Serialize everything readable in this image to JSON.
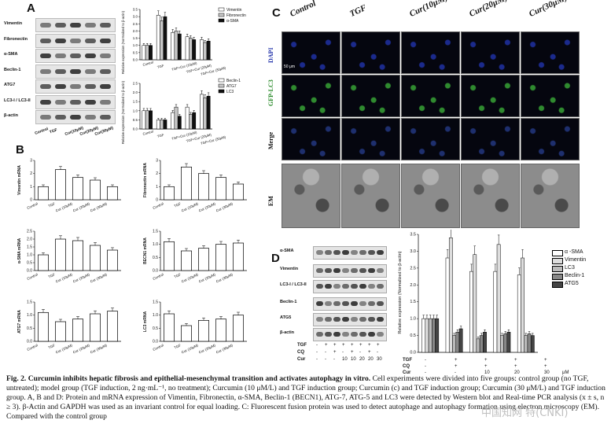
{
  "panels": {
    "A": "A",
    "B": "B",
    "C": "C",
    "D": "D"
  },
  "panelA": {
    "blot_labels": [
      "Vimentin",
      "Fibronectin",
      "α-SMA",
      "Beclin-1",
      "ATG7",
      "LC3-I\nLC3-II",
      "β-actin"
    ],
    "lane_labels": [
      "Control",
      "TGF",
      "Cur(10μM)",
      "Cur(20μM)",
      "Cur(30μM)"
    ],
    "chart1": {
      "ylabel": "Relative expression (Normalized to β-actin)",
      "legend": [
        "Vimentin",
        "Fibronectin",
        "α-SMA"
      ],
      "categories": [
        "Control",
        "TGF",
        "TGF+Cur (10μM)",
        "TGF+Cur (20μM)",
        "TGF+Cur (30μM)"
      ],
      "yticks": [
        "0.0",
        "0.5",
        "1.0",
        "1.5",
        "2.0",
        "2.5",
        "3.0",
        "3.5"
      ]
    },
    "chart2": {
      "ylabel": "Relative expression (Normalized to β-actin)",
      "legend": [
        "Beclin-1",
        "ATG7",
        "LC3"
      ],
      "categories": [
        "Control",
        "TGF",
        "TGF+Cur (10μM)",
        "TGF+Cur (20μM)",
        "TGF+Cur (30μM)"
      ],
      "yticks": [
        "0.0",
        "0.5",
        "1.0",
        "1.5",
        "2.0",
        "2.5"
      ]
    }
  },
  "panelB": {
    "categories": [
      "Control",
      "TGF",
      "Cur (10μM)",
      "Cur (20μM)",
      "Cur (30μM)"
    ],
    "charts": [
      {
        "ylabel": "Vimentin mRNA",
        "yticks": [
          "0",
          "1",
          "2",
          "3"
        ]
      },
      {
        "ylabel": "Fibronectin mRNA",
        "yticks": [
          "0",
          "1",
          "2",
          "3"
        ]
      },
      {
        "ylabel": "α-SMA mRNA",
        "yticks": [
          "0.0",
          "0.5",
          "1.0",
          "1.5",
          "2.0",
          "2.5"
        ]
      },
      {
        "ylabel": "BECN1 mRNA",
        "yticks": [
          "0.0",
          "0.5",
          "1.0",
          "1.5"
        ]
      },
      {
        "ylabel": "ATG7 mRNA",
        "yticks": [
          "0.0",
          "0.5",
          "1.0",
          "1.5"
        ]
      },
      {
        "ylabel": "LC3 mRNA",
        "yticks": [
          "0.0",
          "0.5",
          "1.0",
          "1.5"
        ]
      }
    ]
  },
  "panelC": {
    "columns": [
      "Control",
      "TGF",
      "Cur(10μM)",
      "Cur(20μM)",
      "Cur(30μM)"
    ],
    "rows": [
      "DAPI",
      "GFP-LC3",
      "Merge",
      "EM"
    ],
    "scale": "50 μm",
    "colors": {
      "dapi": "#1b2a8c",
      "gfp": "#2f8a2f",
      "merge": "#1e2f6e",
      "em": "#9a9a9a"
    }
  },
  "panelD": {
    "blot_labels": [
      "α-SMA",
      "Vimentin",
      "LC3-I\nLC3-II",
      "Beclin-1",
      "ATG5",
      "β-actin"
    ],
    "treat_rows": [
      {
        "name": "TGF",
        "vals": [
          "-",
          "+",
          "+",
          "+",
          "+",
          "+",
          "+",
          "+"
        ]
      },
      {
        "name": "CQ",
        "vals": [
          "-",
          "-",
          "+",
          "-",
          "+",
          "-",
          "+",
          "-"
        ]
      },
      {
        "name": "Cur",
        "vals": [
          "-",
          "-",
          "-",
          "10",
          "10",
          "20",
          "20",
          "30"
        ]
      }
    ],
    "chart": {
      "ylabel": "Relative expression (Normalized to β-actin)",
      "legend": [
        "α -SMA",
        "Vimentin",
        "LC3",
        "Beclin-1",
        "ATG5"
      ],
      "yticks": [
        "0.0",
        "0.5",
        "1.0",
        "1.5",
        "2.0",
        "2.5",
        "3.0",
        "3.5"
      ],
      "xrows": [
        {
          "name": "TGF",
          "vals": [
            "-",
            "+",
            "+",
            "+",
            "+"
          ]
        },
        {
          "name": "CQ",
          "vals": [
            "-",
            "+",
            "+",
            "+",
            "+"
          ]
        },
        {
          "name": "Cur",
          "vals": [
            "-",
            "-",
            "10",
            "20",
            "30"
          ]
        }
      ],
      "unit": "μM"
    }
  },
  "caption": {
    "bold": "Fig. 2. Curcumin inhibits hepatic fibrosis and epithelial-mesenchymal transition and activates autophagy in vitro.",
    "text": " Cell experiments were divided into five groups: control group (no TGF, untreated); model group (TGF induction, 2 ng·mL⁻¹, no treatment); Curcumin (10 μM/L) and TGF induction group; Curcumin (c) and TGF induction group; Curcumin (30 μM/L) and TGF induction group. A, B and D: Protein and mRNA expression of Vimentin, Fibronectin, α-SMA, Beclin-1 (BECN1), ATG-7, ATG-5 and LC3 were detected by Western blot and Real-time PCR analysis (x ± s, n ≥ 3). β-Actin and GAPDH was used as an invariant control for equal loading. C: Fluorescent fusion protein was used to detect autophage and autophagy formation using electron microscopy (EM). Compared with the control group"
  },
  "watermark": "中国知网 特(CNKI)",
  "chart_data": [
    {
      "type": "bar",
      "categories": [
        "Control",
        "TGF",
        "TGF+Cur (10μM)",
        "TGF+Cur (20μM)",
        "TGF+Cur (30μM)"
      ],
      "series": [
        {
          "name": "Vimentin",
          "values": [
            1.0,
            3.1,
            1.9,
            1.6,
            1.4
          ]
        },
        {
          "name": "Fibronectin",
          "values": [
            1.0,
            2.7,
            2.0,
            1.5,
            1.2
          ]
        },
        {
          "name": "α-SMA",
          "values": [
            1.0,
            3.0,
            1.8,
            1.4,
            1.3
          ]
        }
      ],
      "ylim": [
        0,
        3.5
      ],
      "ylabel": "Relative expression (Normalized to β-actin)"
    },
    {
      "type": "bar",
      "categories": [
        "Control",
        "TGF",
        "TGF+Cur (10μM)",
        "TGF+Cur (20μM)",
        "TGF+Cur (30μM)"
      ],
      "series": [
        {
          "name": "Beclin-1",
          "values": [
            1.0,
            0.5,
            0.9,
            1.2,
            1.9
          ]
        },
        {
          "name": "ATG7",
          "values": [
            1.0,
            0.5,
            1.2,
            0.8,
            1.7
          ]
        },
        {
          "name": "LC3",
          "values": [
            1.0,
            0.5,
            0.7,
            0.9,
            1.8
          ]
        }
      ],
      "ylim": [
        0,
        2.5
      ],
      "ylabel": "Relative expression (Normalized to β-actin)"
    },
    {
      "type": "bar",
      "categories": [
        "Control",
        "TGF",
        "Cur (10μM)",
        "Cur (20μM)",
        "Cur (30μM)"
      ],
      "values": [
        1.0,
        2.3,
        1.7,
        1.5,
        1.0
      ],
      "ylim": [
        0,
        3
      ],
      "ylabel": "Vimentin mRNA"
    },
    {
      "type": "bar",
      "categories": [
        "Control",
        "TGF",
        "Cur (10μM)",
        "Cur (20μM)",
        "Cur (30μM)"
      ],
      "values": [
        1.0,
        2.5,
        2.0,
        1.7,
        1.2
      ],
      "ylim": [
        0,
        3
      ],
      "ylabel": "Fibronectin mRNA"
    },
    {
      "type": "bar",
      "categories": [
        "Control",
        "TGF",
        "Cur (10μM)",
        "Cur (20μM)",
        "Cur (30μM)"
      ],
      "values": [
        1.0,
        2.0,
        1.9,
        1.6,
        1.3
      ],
      "ylim": [
        0,
        2.5
      ],
      "ylabel": "α-SMA mRNA"
    },
    {
      "type": "bar",
      "categories": [
        "Control",
        "TGF",
        "Cur (10μM)",
        "Cur (20μM)",
        "Cur (30μM)"
      ],
      "values": [
        1.1,
        0.75,
        0.85,
        1.0,
        1.05
      ],
      "ylim": [
        0,
        1.5
      ],
      "ylabel": "BECN1 mRNA"
    },
    {
      "type": "bar",
      "categories": [
        "Control",
        "TGF",
        "Cur (10μM)",
        "Cur (20μM)",
        "Cur (30μM)"
      ],
      "values": [
        1.1,
        0.75,
        0.85,
        1.05,
        1.15
      ],
      "ylim": [
        0,
        1.5
      ],
      "ylabel": "ATG7 mRNA"
    },
    {
      "type": "bar",
      "categories": [
        "Control",
        "TGF",
        "Cur (10μM)",
        "Cur (20μM)",
        "Cur (30μM)"
      ],
      "values": [
        1.05,
        0.6,
        0.8,
        0.85,
        1.0
      ],
      "ylim": [
        0,
        1.5
      ],
      "ylabel": "LC3 mRNA"
    },
    {
      "type": "bar",
      "categories": [
        "-/-/-",
        "+/+/-",
        "+/+/10",
        "+/+/20",
        "+/+/30"
      ],
      "series": [
        {
          "name": "α -SMA",
          "values": [
            1.0,
            2.8,
            2.4,
            2.4,
            2.3
          ]
        },
        {
          "name": "Vimentin",
          "values": [
            1.0,
            3.4,
            2.9,
            3.2,
            2.8
          ]
        },
        {
          "name": "LC3",
          "values": [
            1.0,
            0.5,
            0.4,
            0.5,
            0.5
          ]
        },
        {
          "name": "Beclin-1",
          "values": [
            1.0,
            0.6,
            0.5,
            0.55,
            0.55
          ]
        },
        {
          "name": "ATG5",
          "values": [
            1.0,
            0.7,
            0.6,
            0.6,
            0.5
          ]
        }
      ],
      "ylim": [
        0,
        3.5
      ],
      "ylabel": "Relative expression (Normalized to β-actin)"
    }
  ]
}
